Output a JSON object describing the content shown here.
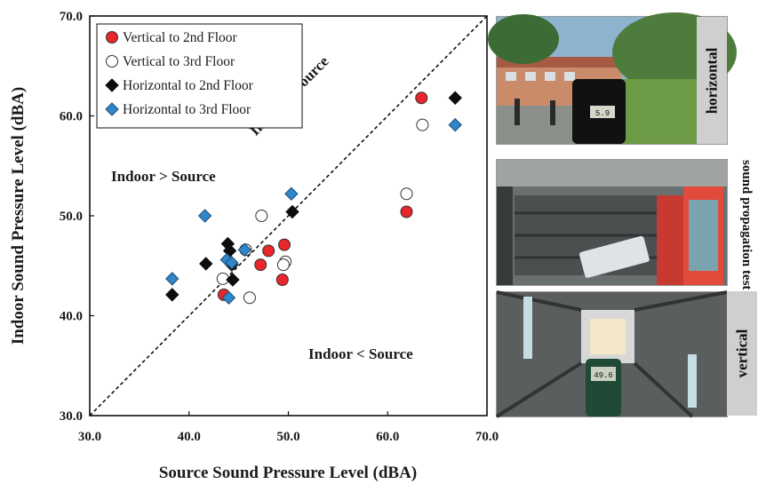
{
  "chart_data": {
    "type": "scatter",
    "xlabel": "Source Sound Pressure Level (dBA)",
    "ylabel": "Indoor Sound Pressure Level (dBA)",
    "xlim": [
      30,
      70
    ],
    "ylim": [
      30,
      70
    ],
    "x_ticks": [
      "30.0",
      "40.0",
      "50.0",
      "60.0",
      "70.0"
    ],
    "y_ticks": [
      "30.0",
      "40.0",
      "50.0",
      "60.0",
      "70.0"
    ],
    "grid": false,
    "legend_position": "top-left",
    "reference_line": {
      "label": "Indoor = Source",
      "slope": 1
    },
    "annotations": [
      "Indoor > Source",
      "Indoor < Source"
    ],
    "series": [
      {
        "name": "Vertical to 2nd Floor",
        "marker": "circle",
        "color": "#e8262b",
        "points": [
          [
            63.4,
            61.8
          ],
          [
            61.9,
            50.4
          ],
          [
            49.6,
            47.1
          ],
          [
            48.0,
            46.5
          ],
          [
            47.2,
            45.1
          ],
          [
            49.4,
            43.6
          ],
          [
            43.5,
            42.1
          ]
        ]
      },
      {
        "name": "Vertical to 3rd Floor",
        "marker": "circle",
        "color": "#ffffff",
        "points": [
          [
            63.5,
            59.1
          ],
          [
            61.9,
            52.2
          ],
          [
            47.3,
            50.0
          ],
          [
            45.7,
            46.6
          ],
          [
            49.7,
            45.4
          ],
          [
            49.5,
            45.1
          ],
          [
            43.4,
            43.7
          ],
          [
            46.1,
            41.8
          ]
        ]
      },
      {
        "name": "Horizontal to 2nd Floor",
        "marker": "diamond",
        "color": "#0d0d0d",
        "points": [
          [
            66.8,
            61.8
          ],
          [
            50.4,
            50.4
          ],
          [
            43.9,
            47.2
          ],
          [
            44.1,
            46.5
          ],
          [
            41.7,
            45.2
          ],
          [
            44.3,
            45.1
          ],
          [
            44.4,
            43.6
          ],
          [
            38.3,
            42.1
          ]
        ]
      },
      {
        "name": "Horizontal to 3rd Floor",
        "marker": "diamond",
        "color": "#2f86c8",
        "points": [
          [
            66.8,
            59.1
          ],
          [
            50.3,
            52.2
          ],
          [
            41.6,
            50.0
          ],
          [
            45.6,
            46.6
          ],
          [
            43.8,
            45.6
          ],
          [
            44.3,
            45.3
          ],
          [
            38.3,
            43.7
          ],
          [
            44.0,
            41.8
          ]
        ]
      }
    ]
  },
  "photos": {
    "horizontal_label": "horizontal",
    "vertical_label": "vertical",
    "side_caption": "sound propagation test",
    "meter_reading_top": "5.9",
    "meter_reading_bottom": "49.6"
  }
}
